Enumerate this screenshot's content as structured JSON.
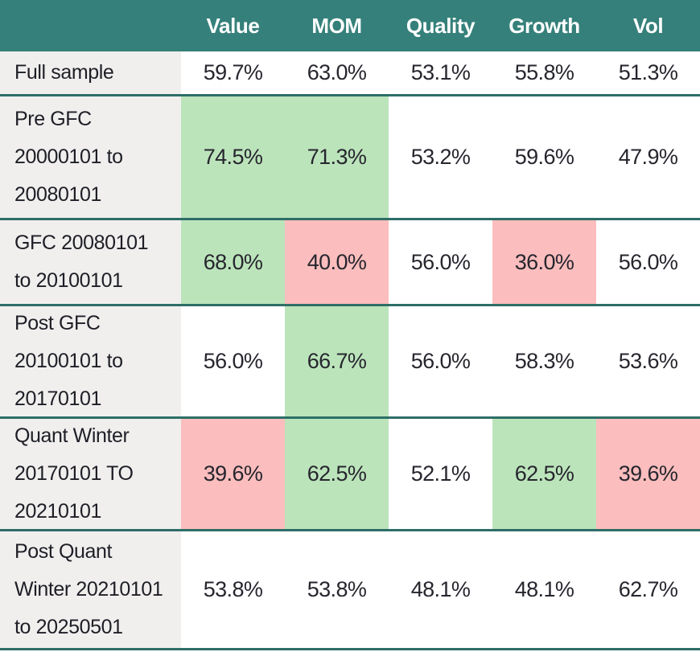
{
  "table": {
    "columns": [
      "Value",
      "MOM",
      "Quality",
      "Growth",
      "Vol"
    ],
    "rows": [
      {
        "label": "Full sample",
        "values": [
          "59.7%",
          "63.0%",
          "53.1%",
          "55.8%",
          "51.3%"
        ],
        "highlights": [
          "",
          "",
          "",
          "",
          ""
        ]
      },
      {
        "label": "Pre GFC\n20000101 to\n20080101",
        "values": [
          "74.5%",
          "71.3%",
          "53.2%",
          "59.6%",
          "47.9%"
        ],
        "highlights": [
          "green",
          "green",
          "",
          "",
          ""
        ]
      },
      {
        "label": "GFC 20080101\nto 20100101",
        "values": [
          "68.0%",
          "40.0%",
          "56.0%",
          "36.0%",
          "56.0%"
        ],
        "highlights": [
          "green",
          "red",
          "",
          "red",
          ""
        ]
      },
      {
        "label": "Post GFC\n20100101 to\n20170101",
        "values": [
          "56.0%",
          "66.7%",
          "56.0%",
          "58.3%",
          "53.6%"
        ],
        "highlights": [
          "",
          "green",
          "",
          "",
          ""
        ]
      },
      {
        "label": "Quant Winter\n20170101 TO\n20210101",
        "values": [
          "39.6%",
          "62.5%",
          "52.1%",
          "62.5%",
          "39.6%"
        ],
        "highlights": [
          "red",
          "green",
          "",
          "green",
          "red"
        ]
      },
      {
        "label": "Post Quant\nWinter 20210101\nto 20250501",
        "values": [
          "53.8%",
          "53.8%",
          "48.1%",
          "48.1%",
          "62.7%"
        ],
        "highlights": [
          "",
          "",
          "",
          "",
          ""
        ]
      }
    ]
  },
  "colors": {
    "header_bg": "#35807a",
    "header_text": "#ffffff",
    "divider": "#2d6e67",
    "label_col_bg": "#f0efee",
    "cell_green": "#bce4bb",
    "cell_red": "#fbbdbd",
    "body_text": "#26262e"
  },
  "chart_data": {
    "type": "table",
    "columns": [
      "Value",
      "MOM",
      "Quality",
      "Growth",
      "Vol"
    ],
    "units": "%",
    "rows": [
      {
        "label": "Full sample",
        "values": [
          59.7,
          63.0,
          53.1,
          55.8,
          51.3
        ],
        "highlights": [
          "",
          "",
          "",
          "",
          ""
        ]
      },
      {
        "label": "Pre GFC 20000101 to 20080101",
        "values": [
          74.5,
          71.3,
          53.2,
          59.6,
          47.9
        ],
        "highlights": [
          "green",
          "green",
          "",
          "",
          ""
        ]
      },
      {
        "label": "GFC 20080101 to 20100101",
        "values": [
          68.0,
          40.0,
          56.0,
          36.0,
          56.0
        ],
        "highlights": [
          "green",
          "red",
          "",
          "red",
          ""
        ]
      },
      {
        "label": "Post GFC 20100101 to 20170101",
        "values": [
          56.0,
          66.7,
          56.0,
          58.3,
          53.6
        ],
        "highlights": [
          "",
          "green",
          "",
          "",
          ""
        ]
      },
      {
        "label": "Quant Winter 20170101 TO 20210101",
        "values": [
          39.6,
          62.5,
          52.1,
          62.5,
          39.6
        ],
        "highlights": [
          "red",
          "green",
          "",
          "green",
          "red"
        ]
      },
      {
        "label": "Post Quant Winter 20210101 to 20250501",
        "values": [
          53.8,
          53.8,
          48.1,
          48.1,
          62.7
        ],
        "highlights": [
          "",
          "",
          "",
          "",
          ""
        ]
      }
    ]
  }
}
